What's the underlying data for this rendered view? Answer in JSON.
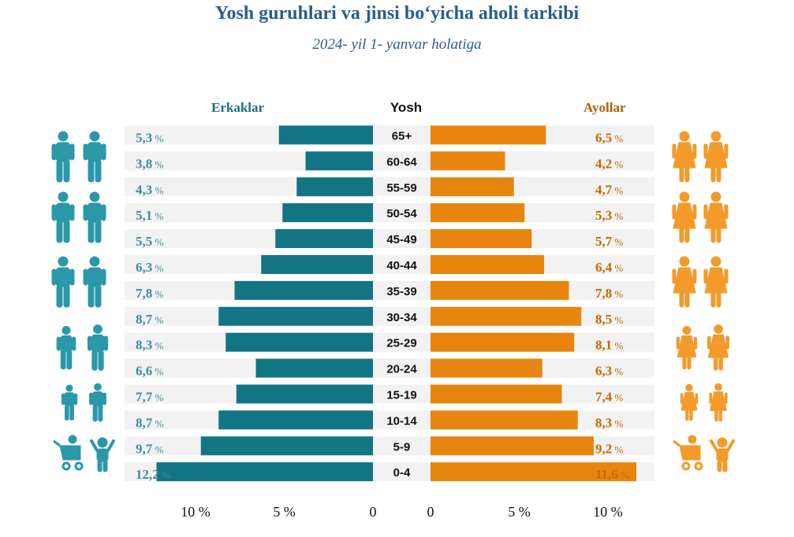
{
  "title": "Yosh guruhlari va jinsi bo‘yicha aholi tarkibi",
  "subtitle": "2024- yil 1- yanvar holatiga",
  "headers": {
    "male": "Erkaklar",
    "age": "Yosh",
    "female": "Ayollar"
  },
  "colors": {
    "male": "#117584",
    "female": "#e8850e",
    "male_label": "#3e8e9e",
    "female_label": "#c66a00",
    "band": "#f2f2f2",
    "title": "#2a5d8c"
  },
  "chart_data": {
    "type": "bar",
    "orientation": "horizontal-population-pyramid",
    "title": "Yosh guruhlari va jinsi bo‘yicha aholi tarkibi",
    "subtitle": "2024- yil 1- yanvar holatiga",
    "categories": [
      "65+",
      "60-64",
      "55-59",
      "50-54",
      "45-49",
      "40-44",
      "35-39",
      "30-34",
      "25-29",
      "20-24",
      "15-19",
      "10-14",
      "5-9",
      "0-4"
    ],
    "series": [
      {
        "name": "Erkaklar",
        "values": [
          5.3,
          3.8,
          4.3,
          5.1,
          5.5,
          6.3,
          7.8,
          8.7,
          8.3,
          6.6,
          7.7,
          8.7,
          9.7,
          12.2
        ],
        "labels": [
          "5,3",
          "3,8",
          "4,3",
          "5,1",
          "5,5",
          "6,3",
          "7,8",
          "8,7",
          "8,3",
          "6,6",
          "7,7",
          "8,7",
          "9,7",
          "12,2"
        ]
      },
      {
        "name": "Ayollar",
        "values": [
          6.5,
          4.2,
          4.7,
          5.3,
          5.7,
          6.4,
          7.8,
          8.5,
          8.1,
          6.3,
          7.4,
          8.3,
          9.2,
          11.6
        ],
        "labels": [
          "6,5",
          "4,2",
          "4,7",
          "5,3",
          "5,7",
          "6,4",
          "7,8",
          "8,5",
          "8,1",
          "6,3",
          "7,4",
          "8,3",
          "9,2",
          "11,6"
        ]
      }
    ],
    "unit": "%",
    "male_axis_ticks": [
      "10 %",
      "5 %",
      "0"
    ],
    "female_axis_ticks": [
      "0",
      "5 %",
      "10 %"
    ],
    "male_tick_values": [
      10,
      5,
      0
    ],
    "female_tick_values": [
      0,
      5,
      10
    ],
    "grid": false,
    "legend": "top"
  }
}
